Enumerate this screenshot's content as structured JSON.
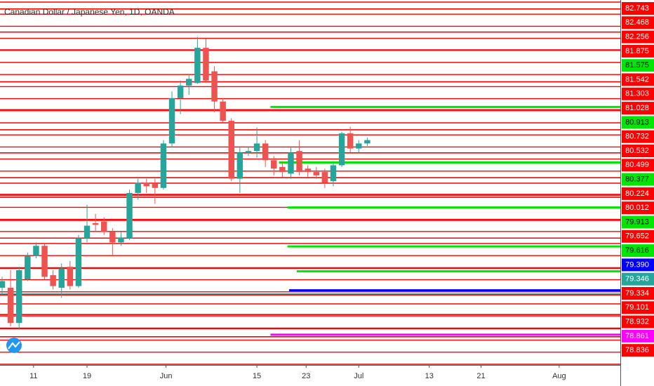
{
  "chart_data": {
    "type": "candlestick",
    "title": "Canadian Dollar / Japanese Yen, 1D, OANDA",
    "up_color": "#26a69a",
    "down_color": "#ef5350",
    "x": [
      0,
      1,
      2,
      3,
      4,
      5,
      6,
      7,
      8,
      9,
      10,
      11,
      12,
      13,
      14,
      15,
      16,
      17,
      18,
      19,
      20,
      21,
      22,
      23,
      24,
      25,
      26,
      27,
      28,
      29,
      30,
      31,
      32,
      33,
      34,
      35,
      36,
      37,
      38,
      39,
      40,
      41,
      42,
      43
    ],
    "open": [
      79.42,
      79.42,
      79.0,
      79.52,
      79.8,
      79.92,
      79.57,
      79.42,
      79.67,
      79.44,
      80.01,
      80.19,
      80.21,
      80.09,
      79.96,
      80.01,
      80.55,
      80.67,
      80.66,
      80.61,
      81.14,
      81.68,
      81.83,
      81.86,
      82.28,
      82.0,
      81.64,
      81.41,
      80.72,
      81.03,
      81.05,
      81.14,
      80.94,
      80.86,
      80.78,
      81.05,
      80.84,
      80.8,
      80.8,
      80.69,
      80.88,
      81.26,
      81.08,
      81.14
    ],
    "high": [
      79.55,
      79.63,
      79.67,
      79.84,
      79.96,
      79.94,
      79.63,
      79.71,
      79.74,
      80.05,
      80.41,
      80.3,
      80.26,
      80.13,
      80.09,
      80.59,
      80.72,
      80.72,
      80.72,
      81.18,
      81.76,
      81.89,
      81.97,
      82.41,
      82.39,
      82.06,
      81.68,
      81.44,
      81.09,
      81.09,
      81.33,
      81.18,
      80.99,
      80.93,
      81.09,
      81.18,
      80.88,
      80.86,
      80.84,
      80.93,
      81.28,
      81.34,
      81.18,
      81.21
    ],
    "low": [
      79.34,
      78.96,
      78.92,
      79.5,
      79.77,
      79.52,
      79.4,
      79.3,
      79.4,
      79.42,
      79.96,
      80.09,
      80.05,
      79.8,
      79.92,
      79.99,
      80.47,
      80.55,
      80.42,
      80.59,
      81.09,
      81.49,
      81.72,
      81.85,
      81.86,
      81.51,
      81.39,
      80.69,
      80.55,
      80.99,
      80.97,
      80.86,
      80.76,
      80.74,
      80.72,
      80.76,
      80.74,
      80.72,
      80.61,
      80.63,
      80.86,
      81.03,
      81.03,
      81.11
    ],
    "close": [
      79.5,
      79.0,
      79.63,
      79.8,
      79.92,
      79.55,
      79.44,
      79.65,
      79.44,
      80.01,
      80.16,
      80.17,
      80.09,
      79.96,
      80.02,
      80.55,
      80.67,
      80.63,
      80.61,
      81.14,
      81.68,
      81.83,
      81.91,
      82.28,
      81.89,
      81.64,
      81.41,
      80.72,
      81.03,
      81.05,
      81.14,
      80.94,
      80.84,
      80.8,
      81.03,
      80.8,
      80.8,
      80.76,
      80.67,
      80.88,
      81.26,
      81.08,
      81.14,
      81.18
    ],
    "xlim": [
      -0.25,
      72.8
    ],
    "ylim": [
      78.5,
      82.85
    ],
    "xticks": [
      {
        "value": 3.7,
        "label": "11"
      },
      {
        "value": 10.0,
        "label": "19"
      },
      {
        "value": 19.3,
        "label": "Jun"
      },
      {
        "value": 30.0,
        "label": "15"
      },
      {
        "value": 35.8,
        "label": "23"
      },
      {
        "value": 42.0,
        "label": "Jul"
      },
      {
        "value": 50.3,
        "label": "13"
      },
      {
        "value": 56.4,
        "label": "21"
      },
      {
        "value": 65.6,
        "label": "Aug"
      }
    ],
    "levels": [
      {
        "value": 82.743,
        "label": "82.743",
        "color": "#ff0000"
      },
      {
        "value": 82.468,
        "label": "82.468",
        "color": "#ff0000"
      },
      {
        "value": 82.256,
        "label": "82.256",
        "color": "#ff0000"
      },
      {
        "value": 81.875,
        "label": "81.875",
        "color": "#ff0000"
      },
      {
        "value": 81.575,
        "label": "81.575",
        "color": "#00e600",
        "from": 31.6
      },
      {
        "value": 81.542,
        "label": "81.542",
        "color": "#ff0000"
      },
      {
        "value": 81.303,
        "label": "81.303",
        "color": "#ff0000"
      },
      {
        "value": 81.028,
        "label": "81.028",
        "color": "#ff0000"
      },
      {
        "value": 80.913,
        "label": "80.913",
        "color": "#00e600",
        "from": 32.6
      },
      {
        "value": 80.732,
        "label": "80.732",
        "color": "#ff0000"
      },
      {
        "value": 80.532,
        "label": "80.532",
        "color": "#ff0000"
      },
      {
        "value": 80.499,
        "label": "80.499",
        "color": "#ff0000"
      },
      {
        "value": 80.377,
        "label": "80.377",
        "color": "#00e600",
        "from": 33.6
      },
      {
        "value": 80.224,
        "label": "80.224",
        "color": "#ff0000"
      },
      {
        "value": 80.012,
        "label": "80.012",
        "color": "#ff0000"
      },
      {
        "value": 79.913,
        "label": "79.913",
        "color": "#00e600",
        "from": 33.6
      },
      {
        "value": 79.652,
        "label": "79.652",
        "color": "#ff0000"
      },
      {
        "value": 79.616,
        "label": "79.616",
        "color": "#00e600",
        "from": 34.7
      },
      {
        "value": 79.39,
        "label": "79.390",
        "color": "#0000ff",
        "from": 33.8
      },
      {
        "value": 79.346,
        "label": "79.346",
        "color": "#26a69a"
      },
      {
        "value": 79.334,
        "label": "79.334",
        "color": "#ff0000"
      },
      {
        "value": 79.101,
        "label": "79.101",
        "color": "#ff0000"
      },
      {
        "value": 78.932,
        "label": "78.932",
        "color": "#ff0000"
      },
      {
        "value": 78.861,
        "label": "78.861",
        "color": "#ff00ff",
        "from": 31.6
      },
      {
        "value": 78.836,
        "label": "78.836",
        "color": "#ff0000"
      }
    ]
  }
}
